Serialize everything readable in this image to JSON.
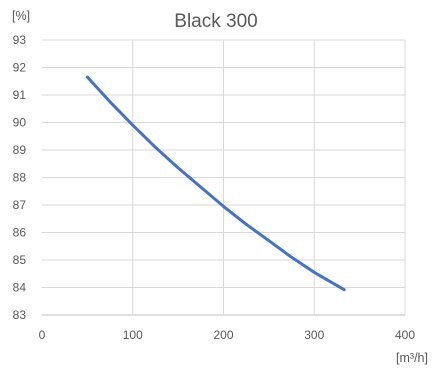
{
  "chart_data": {
    "type": "line",
    "title": "Black 300",
    "y_unit": "[%]",
    "x_unit": "[m³/h]",
    "xlim": [
      0,
      400
    ],
    "ylim": [
      83,
      93
    ],
    "x_ticks": [
      0,
      100,
      200,
      300,
      400
    ],
    "y_ticks": [
      83,
      84,
      85,
      86,
      87,
      88,
      89,
      90,
      91,
      92,
      93
    ],
    "grid": true,
    "legend": "none",
    "series": [
      {
        "color": "#4472c4",
        "x": [
          50,
          75,
          100,
          125,
          150,
          175,
          200,
          225,
          250,
          275,
          300,
          333
        ],
        "y": [
          91.65,
          90.75,
          89.9,
          89.1,
          88.35,
          87.65,
          86.95,
          86.3,
          85.7,
          85.1,
          84.55,
          83.92
        ]
      }
    ]
  }
}
